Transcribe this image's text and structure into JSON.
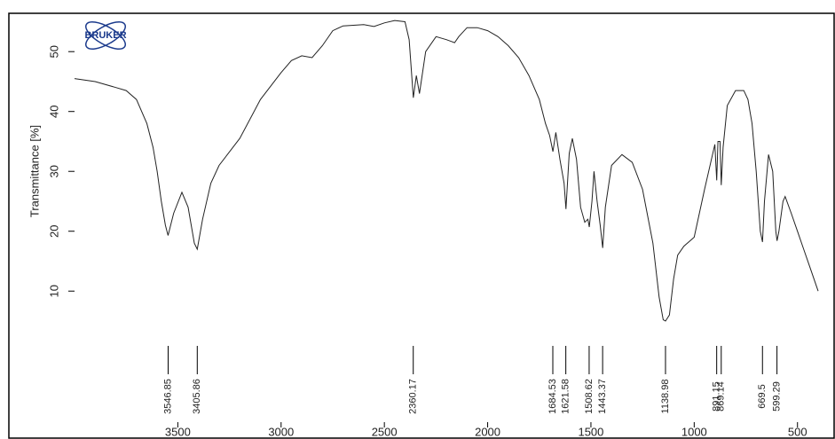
{
  "chart_data": {
    "type": "line",
    "logo": "BRUKER",
    "y_label": "Transmittance [%]",
    "x": [
      4000,
      3900,
      3800,
      3750,
      3700,
      3650,
      3620,
      3600,
      3580,
      3560,
      3547,
      3520,
      3480,
      3450,
      3420,
      3406,
      3380,
      3340,
      3300,
      3200,
      3100,
      3000,
      2950,
      2900,
      2850,
      2800,
      2750,
      2700,
      2600,
      2550,
      2500,
      2450,
      2400,
      2380,
      2360,
      2345,
      2330,
      2300,
      2250,
      2200,
      2160,
      2140,
      2100,
      2050,
      2000,
      1950,
      1900,
      1850,
      1800,
      1750,
      1720,
      1700,
      1684,
      1670,
      1650,
      1630,
      1621,
      1605,
      1590,
      1570,
      1550,
      1530,
      1515,
      1508,
      1495,
      1485,
      1470,
      1455,
      1443,
      1430,
      1400,
      1350,
      1300,
      1250,
      1200,
      1170,
      1150,
      1139,
      1120,
      1100,
      1080,
      1050,
      1000,
      950,
      900,
      891,
      885,
      875,
      869,
      860,
      840,
      800,
      760,
      740,
      720,
      700,
      680,
      669.5,
      660,
      640,
      620,
      605,
      599,
      590,
      570,
      560,
      530,
      500,
      470,
      440,
      400
    ],
    "values": [
      45.5,
      45,
      44,
      43.5,
      42,
      38,
      34,
      30,
      25,
      21,
      19.3,
      23,
      26.5,
      24,
      18,
      17,
      22,
      28,
      31,
      35.5,
      42,
      46.5,
      48.5,
      49.3,
      49,
      51,
      53.5,
      54.3,
      54.5,
      54.2,
      54.8,
      55.2,
      55,
      52,
      42.3,
      46,
      43,
      50,
      52.5,
      52,
      51.5,
      52.5,
      54,
      54,
      53.5,
      52.5,
      51,
      49,
      46,
      42,
      38,
      36,
      33.3,
      36.5,
      32,
      28,
      23.7,
      33,
      35.5,
      32,
      24,
      21.5,
      22,
      20.7,
      25,
      30,
      25,
      21,
      17.2,
      24,
      31,
      32.8,
      31.5,
      27,
      18,
      9,
      5.2,
      5,
      6,
      12,
      16,
      17.5,
      19,
      27,
      34.5,
      28.5,
      35,
      35,
      27.7,
      34,
      41,
      43.5,
      43.5,
      42,
      38,
      30,
      20,
      18.2,
      25,
      32.8,
      30,
      20,
      18.4,
      20,
      25,
      25.8,
      23,
      20,
      17,
      14,
      10
    ],
    "color": "#222222",
    "peak_labels": [
      3546.85,
      3405.86,
      2360.17,
      1684.53,
      1621.58,
      1508.62,
      1443.37,
      1138.98,
      891.15,
      869.14,
      669.5,
      599.29
    ],
    "xlim": [
      4000,
      400
    ],
    "xticks": [
      3500,
      3000,
      2500,
      2000,
      1500,
      1000,
      500
    ],
    "ylim": [
      -11,
      56.4
    ],
    "yticks": [
      10,
      20,
      30,
      40,
      50
    ]
  }
}
